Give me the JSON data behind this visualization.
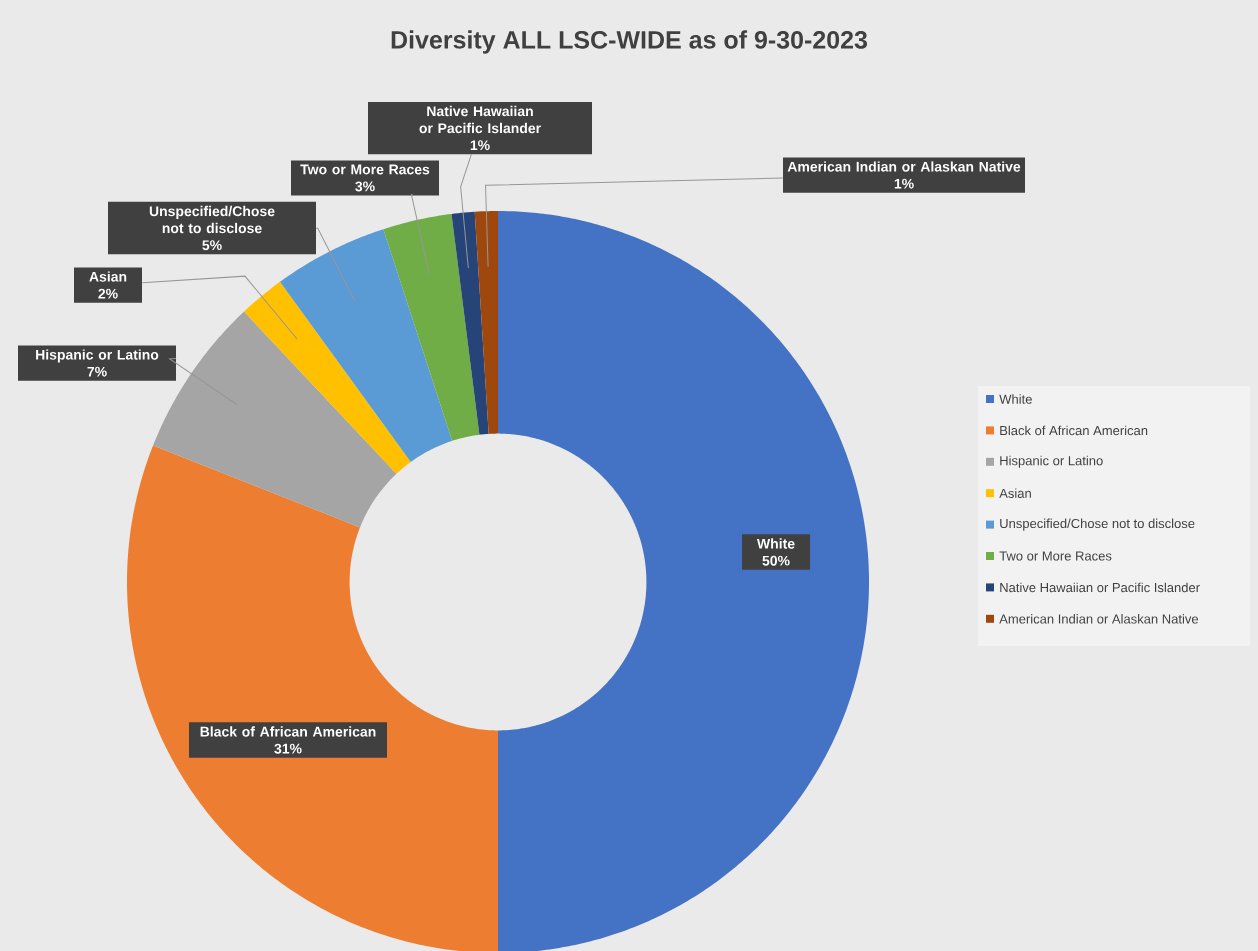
{
  "chart_data": {
    "type": "donut",
    "title": "Diversity ALL LSC-WIDE as of 9-30-2023",
    "categories": [
      "White",
      "Black of African American",
      "Hispanic or Latino",
      "Asian",
      "Unspecified/Chose not to disclose",
      "Two or More Races",
      "Native Hawaiian or Pacific Islander",
      "American Indian or Alaskan Native"
    ],
    "values": [
      50,
      31,
      7,
      2,
      5,
      3,
      1,
      1
    ],
    "value_labels": [
      "50%",
      "31%",
      "7%",
      "2%",
      "5%",
      "3%",
      "1%",
      "1%"
    ],
    "colors": [
      "#4472c4",
      "#ed7d31",
      "#a5a5a5",
      "#ffc000",
      "#5b9bd5",
      "#70ad47",
      "#264478",
      "#9e480e"
    ],
    "legend": "right"
  }
}
